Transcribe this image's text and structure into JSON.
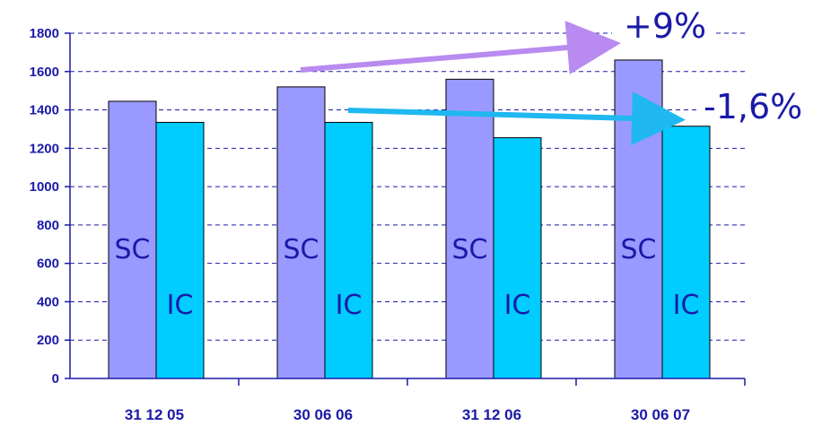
{
  "chart_data": {
    "type": "bar",
    "categories": [
      "31 12 05",
      "30 06 06",
      "31 12 06",
      "30 06 07"
    ],
    "series": [
      {
        "name": "SC",
        "values": [
          1445,
          1520,
          1560,
          1660
        ],
        "color": "#9999ff"
      },
      {
        "name": "IC",
        "values": [
          1335,
          1335,
          1255,
          1315
        ],
        "color": "#00ccff"
      }
    ],
    "yticks": [
      0,
      200,
      400,
      600,
      800,
      1000,
      1200,
      1400,
      1600,
      1800
    ],
    "ylim": [
      0,
      1800
    ],
    "grid": true,
    "annotations": [
      {
        "text": "+9%",
        "color": "#cc99ff"
      },
      {
        "text": "-1,6%",
        "color": "#33ccff"
      }
    ]
  }
}
